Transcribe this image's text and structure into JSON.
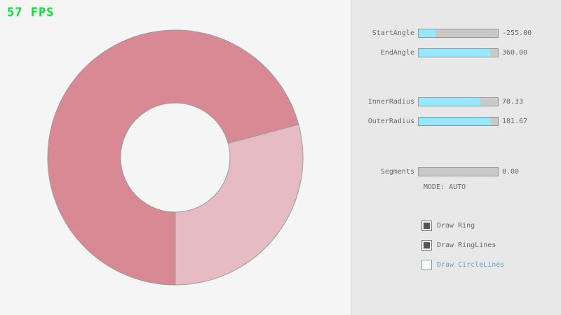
{
  "fps_label": "57 FPS",
  "colors": {
    "fps_green": "#00e430",
    "ring_dark": "#d98994",
    "ring_light": "#e6bbc3",
    "ring_line": "#9b9b9b",
    "canvas_bg": "#f5f5f5",
    "panel_bg": "#e8e8e8",
    "slider_fill_cyan": "#97e8ff"
  },
  "ring": {
    "start_angle": -255.0,
    "end_angle": 360.0,
    "inner_radius": 78.33,
    "outer_radius": 181.67,
    "segments": 0.0
  },
  "controls": {
    "sliders": [
      {
        "label": "StartAngle",
        "value": "-255.00",
        "fill_pct": 21
      },
      {
        "label": "EndAngle",
        "value": "360.00",
        "fill_pct": 90
      },
      {
        "label": "InnerRadius",
        "value": "78.33",
        "fill_pct": 78
      },
      {
        "label": "OuterRadius",
        "value": "181.67",
        "fill_pct": 91
      },
      {
        "label": "Segments",
        "value": "0.00",
        "fill_pct": 0
      }
    ],
    "mode_text": "MODE: AUTO",
    "checkboxes": [
      {
        "label": "Draw Ring",
        "checked": true
      },
      {
        "label": "Draw RingLines",
        "checked": true
      },
      {
        "label": "Draw CircleLines",
        "checked": false
      }
    ]
  }
}
